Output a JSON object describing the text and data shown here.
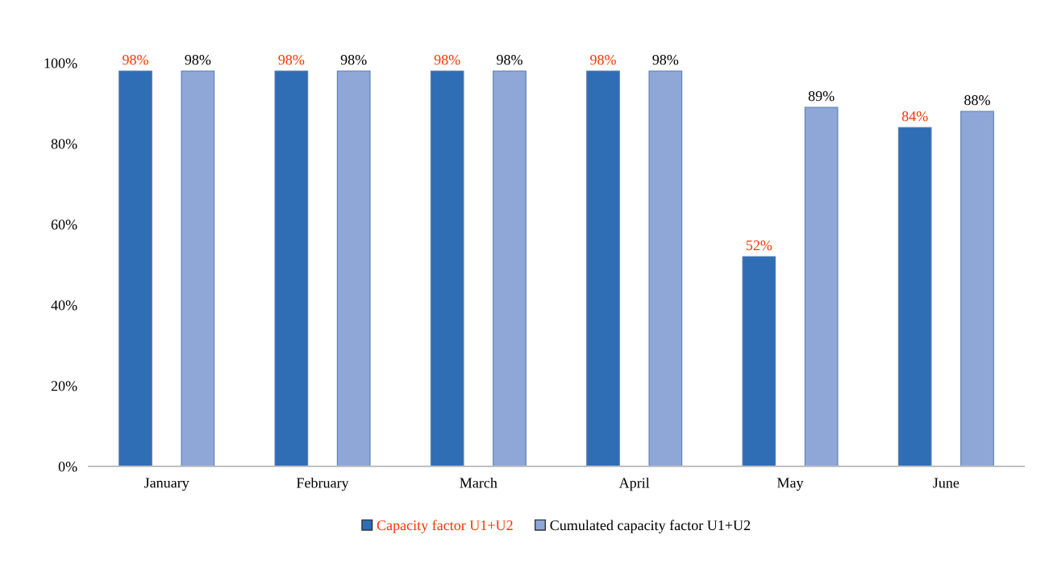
{
  "chart_data": {
    "type": "bar",
    "categories": [
      "January",
      "February",
      "March",
      "April",
      "May",
      "June"
    ],
    "series": [
      {
        "name": "Capacity factor U1+U2",
        "color": "#2f6db5",
        "values": [
          98,
          98,
          98,
          98,
          52,
          84
        ],
        "value_labels": [
          "98%",
          "98%",
          "98%",
          "98%",
          "52%",
          "84%"
        ]
      },
      {
        "name": "Cumulated capacity factor U1+U2",
        "color": "#8ea7d7",
        "values": [
          98,
          98,
          98,
          98,
          89,
          88
        ],
        "value_labels": [
          "98%",
          "98%",
          "98%",
          "98%",
          "89%",
          "88%"
        ]
      }
    ],
    "ylim": [
      0,
      100
    ],
    "yticks": [
      {
        "value": 0,
        "label": "0%"
      },
      {
        "value": 20,
        "label": "20%"
      },
      {
        "value": 40,
        "label": "40%"
      },
      {
        "value": 60,
        "label": "60%"
      },
      {
        "value": 80,
        "label": "80%"
      },
      {
        "value": 100,
        "label": "100%"
      }
    ],
    "grid": false,
    "legend": "bottom"
  }
}
